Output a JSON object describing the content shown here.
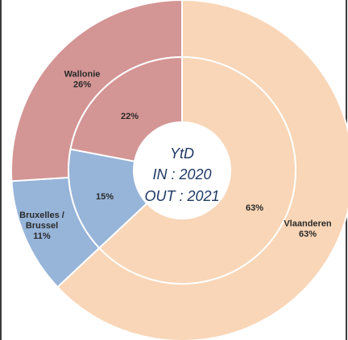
{
  "chart_data": {
    "type": "pie",
    "subtype": "double-donut",
    "center_text": [
      "YtD",
      "IN : 2020",
      "OUT : 2021"
    ],
    "rings": [
      {
        "ring": "inner",
        "slices": [
          {
            "label": "",
            "value": 63,
            "value_label": "63%",
            "color": "#f9d6b7"
          },
          {
            "label": "",
            "value": 15,
            "value_label": "15%",
            "color": "#97b4d9"
          },
          {
            "label": "",
            "value": 22,
            "value_label": "22%",
            "color": "#d49595"
          }
        ]
      },
      {
        "ring": "outer",
        "slices": [
          {
            "label": "Vlaanderen",
            "value": 63,
            "value_label": "63%",
            "color": "#f9d6b7"
          },
          {
            "label": "Bruxelles / Brussel",
            "value": 11,
            "value_label": "11%",
            "color": "#97b4d9"
          },
          {
            "label": "Wallonie",
            "value": 26,
            "value_label": "26%",
            "color": "#d49595"
          }
        ]
      }
    ],
    "legend": "none",
    "grid": false
  }
}
